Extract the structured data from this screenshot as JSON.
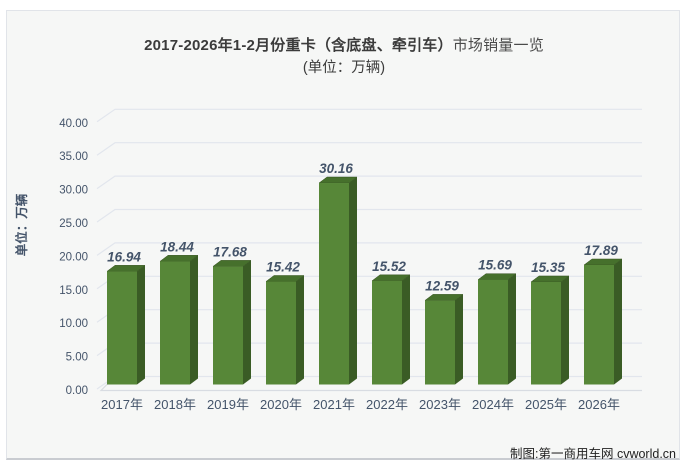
{
  "header": {
    "title_bold": "2017-2026年1-2月份重卡（含底盘、牵引车）",
    "title_regular": "市场销量一览",
    "subtitle": "(单位：万辆)"
  },
  "footer": {
    "credit": "制图:第一商用车网 cvworld.cn"
  },
  "chart_data": {
    "type": "bar",
    "title": "2017-2026年1-2月份重卡（含底盘、牵引车）市场销量一览",
    "subtitle": "(单位：万辆)",
    "categories": [
      "2017年",
      "2018年",
      "2019年",
      "2020年",
      "2021年",
      "2022年",
      "2023年",
      "2024年",
      "2025年",
      "2026年"
    ],
    "values": [
      16.94,
      18.44,
      17.68,
      15.42,
      30.16,
      15.52,
      12.59,
      15.69,
      15.35,
      17.89
    ],
    "xlabel": "",
    "ylabel": "单位：万辆",
    "ylim": [
      0,
      40
    ],
    "ytick_step": 5,
    "ytick_labels": [
      "0.00",
      "5.00",
      "10.00",
      "15.00",
      "20.00",
      "25.00",
      "30.00",
      "35.00",
      "40.00"
    ],
    "grid": true,
    "legend": "none",
    "effect": "3d",
    "data_labels": true,
    "style": {
      "bar_front": "#578738",
      "bar_top": "#46702c",
      "bar_side": "#3a5c25",
      "bar_edge": "#35521f",
      "grid_color": "#e2e6ed",
      "axis_floor_color": "#d8dce2",
      "tick_label_color": "#44546a",
      "data_label_color": "#44546a",
      "x_label_color": "#44546a",
      "y_title_color": "#44546a",
      "panel_bg": "#f6f7f6"
    }
  }
}
